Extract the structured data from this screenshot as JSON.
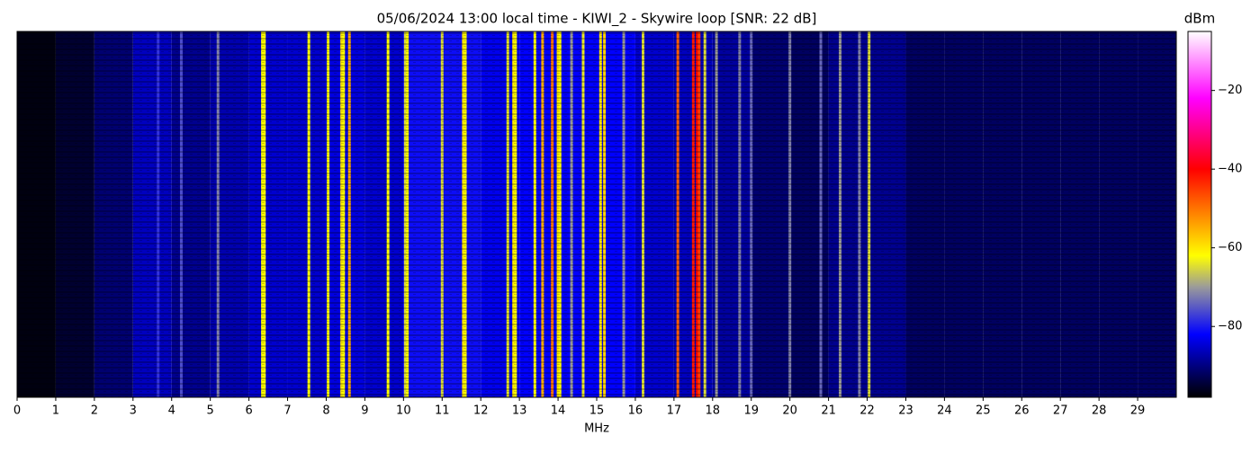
{
  "chart_data": {
    "type": "waterfall",
    "title": "05/06/2024 13:00 local time - KIWI_2 - Skywire loop [SNR: 22 dB]",
    "xlabel": "MHz",
    "colorbar_label": "dBm",
    "xlim": [
      0,
      30
    ],
    "xticks": [
      0,
      1,
      2,
      3,
      4,
      5,
      6,
      7,
      8,
      9,
      10,
      11,
      12,
      13,
      14,
      15,
      16,
      17,
      18,
      19,
      20,
      21,
      22,
      23,
      24,
      25,
      26,
      27,
      28,
      29
    ],
    "clim": [
      -98,
      -5
    ],
    "cticks": [
      {
        "value": -80,
        "label": "−80"
      },
      {
        "value": -60,
        "label": "−60"
      },
      {
        "value": -40,
        "label": "−40"
      },
      {
        "value": -20,
        "label": "−20"
      }
    ],
    "colormap": [
      {
        "value": -98,
        "color": "#000000"
      },
      {
        "value": -82,
        "color": "#0000ff"
      },
      {
        "value": -70,
        "color": "#9a9a9a"
      },
      {
        "value": -62,
        "color": "#ffff00"
      },
      {
        "value": -40,
        "color": "#ff0000"
      },
      {
        "value": -22,
        "color": "#ff00ff"
      },
      {
        "value": -5,
        "color": "#ffffff"
      }
    ],
    "noise_floor": {
      "bins": [
        0,
        1,
        2,
        3,
        4,
        5,
        6,
        7,
        8,
        9,
        10,
        11,
        12,
        13,
        14,
        15,
        16,
        17,
        18,
        19,
        20,
        21,
        22,
        23,
        24,
        25,
        26,
        27,
        28,
        29,
        30
      ],
      "values": [
        -97,
        -95,
        -91,
        -86,
        -89,
        -87,
        -85,
        -85,
        -84,
        -85,
        -81,
        -81,
        -83,
        -82,
        -82,
        -82,
        -85,
        -86,
        -88,
        -91,
        -92,
        -89,
        -89,
        -92,
        -92,
        -92,
        -92,
        -92,
        -92,
        -92
      ]
    },
    "signals": {
      "x": [
        3.65,
        4.25,
        5.2,
        6.35,
        6.4,
        7.55,
        8.05,
        8.4,
        8.45,
        8.6,
        9.6,
        10.05,
        10.1,
        11.0,
        11.55,
        11.6,
        12.7,
        12.85,
        12.9,
        13.4,
        13.6,
        13.85,
        14.0,
        14.05,
        14.35,
        14.65,
        15.1,
        15.2,
        15.7,
        16.2,
        17.1,
        17.5,
        17.6,
        17.65,
        17.8,
        18.1,
        18.7,
        19.0,
        20.0,
        20.8,
        21.3,
        21.8,
        22.05
      ],
      "values": [
        -78,
        -76,
        -72,
        -62,
        -62,
        -62,
        -62,
        -60,
        -62,
        -55,
        -62,
        -65,
        -62,
        -65,
        -60,
        -62,
        -64,
        -60,
        -62,
        -62,
        -55,
        -50,
        -60,
        -62,
        -70,
        -64,
        -60,
        -58,
        -70,
        -65,
        -48,
        -42,
        -40,
        -45,
        -65,
        -70,
        -72,
        -74,
        -72,
        -74,
        -70,
        -72,
        -65
      ]
    }
  }
}
